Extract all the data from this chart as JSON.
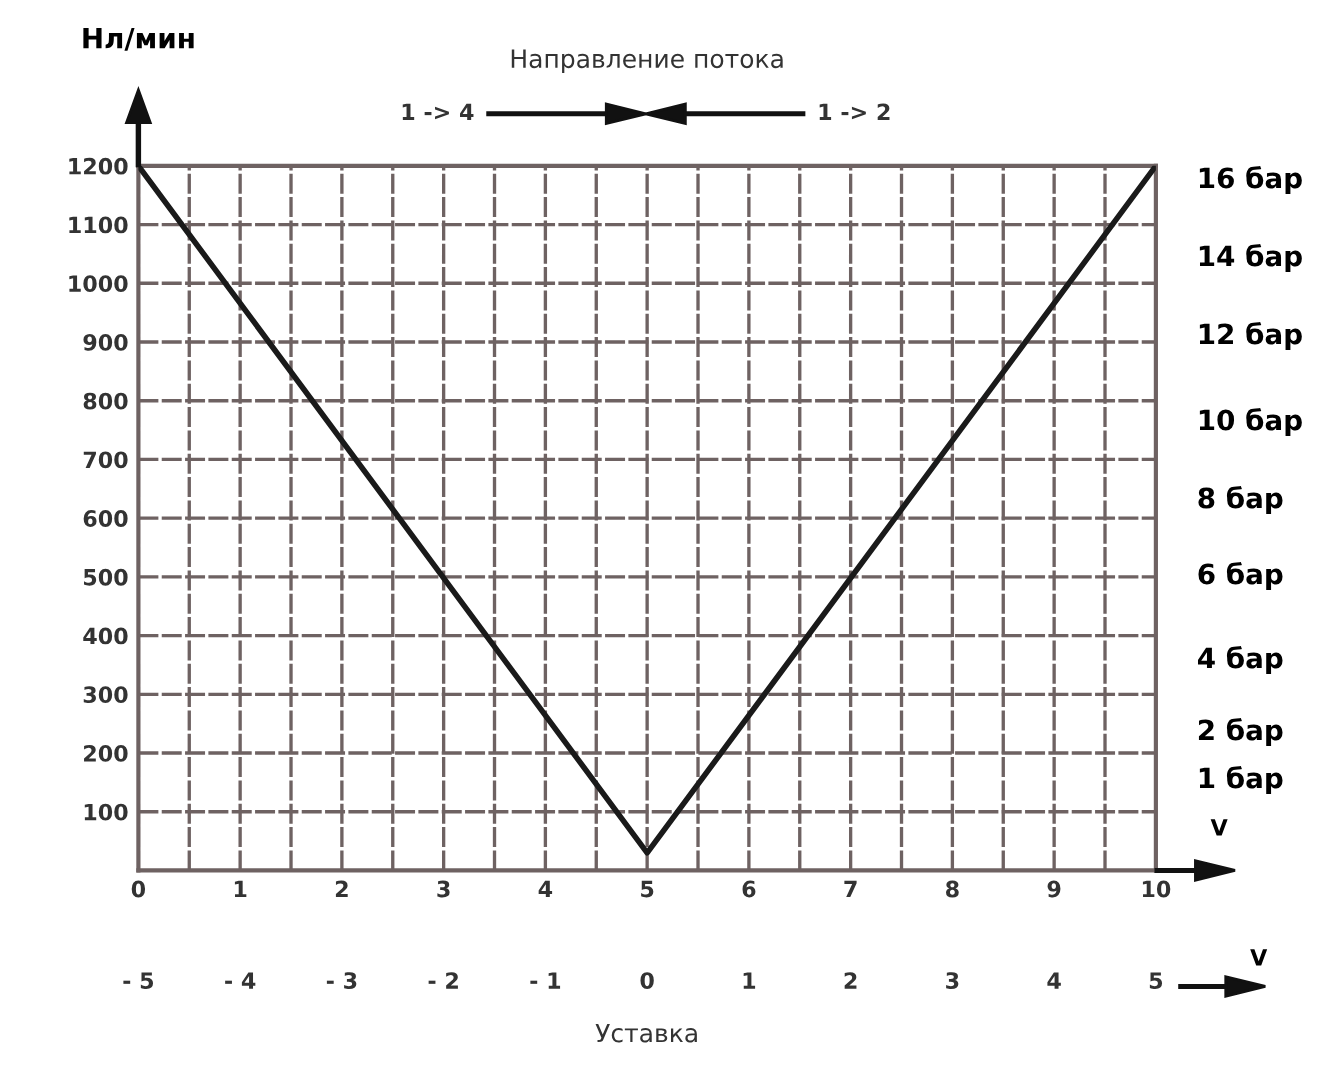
{
  "chart_data": {
    "type": "line",
    "title": "Направление потока",
    "ylabel": "Нл/мин",
    "xlabel": "V",
    "x2label": "V",
    "annotations": [
      "1 -> 4",
      "1 -> 2",
      "Уставка",
      "16 бар",
      "14 бар",
      "12 бар",
      "10 бар",
      "8 бар",
      "6 бар",
      "4 бар",
      "2 бар",
      "1 бар"
    ],
    "x": [
      0,
      5,
      10
    ],
    "series": [
      {
        "color": "#1a1a1a",
        "values": [
          1200,
          30,
          1200
        ]
      }
    ],
    "xlim": [
      0,
      10
    ],
    "xticks": [
      0,
      {
        "value": 0.5,
        "label": null
      },
      1,
      {
        "value": 1.5,
        "label": null
      },
      2,
      {
        "value": 2.5,
        "label": null
      },
      3,
      {
        "value": 3.5,
        "label": null
      },
      4,
      {
        "value": 4.5,
        "label": null
      },
      5,
      {
        "value": 5.5,
        "label": null
      },
      6,
      {
        "value": 6.5,
        "label": null
      },
      7,
      {
        "value": 7.5,
        "label": null
      },
      8,
      {
        "value": 8.5,
        "label": null
      },
      9,
      {
        "value": 9.5,
        "label": null
      },
      10
    ],
    "x2lim": [
      -5,
      5
    ],
    "x2ticks": [
      {
        "value": -5,
        "label": "- 5"
      },
      {
        "value": -4,
        "label": "- 4"
      },
      {
        "value": -3,
        "label": "- 3"
      },
      {
        "value": -2,
        "label": "- 2"
      },
      {
        "value": -1,
        "label": "- 1"
      },
      0,
      1,
      2,
      3,
      4,
      5
    ],
    "ylim": [
      0,
      1200
    ],
    "yticks": [
      100,
      200,
      300,
      400,
      500,
      600,
      700,
      800,
      900,
      1000,
      1100,
      1200
    ],
    "grid": true,
    "marker": "none",
    "line_style": "solid"
  }
}
